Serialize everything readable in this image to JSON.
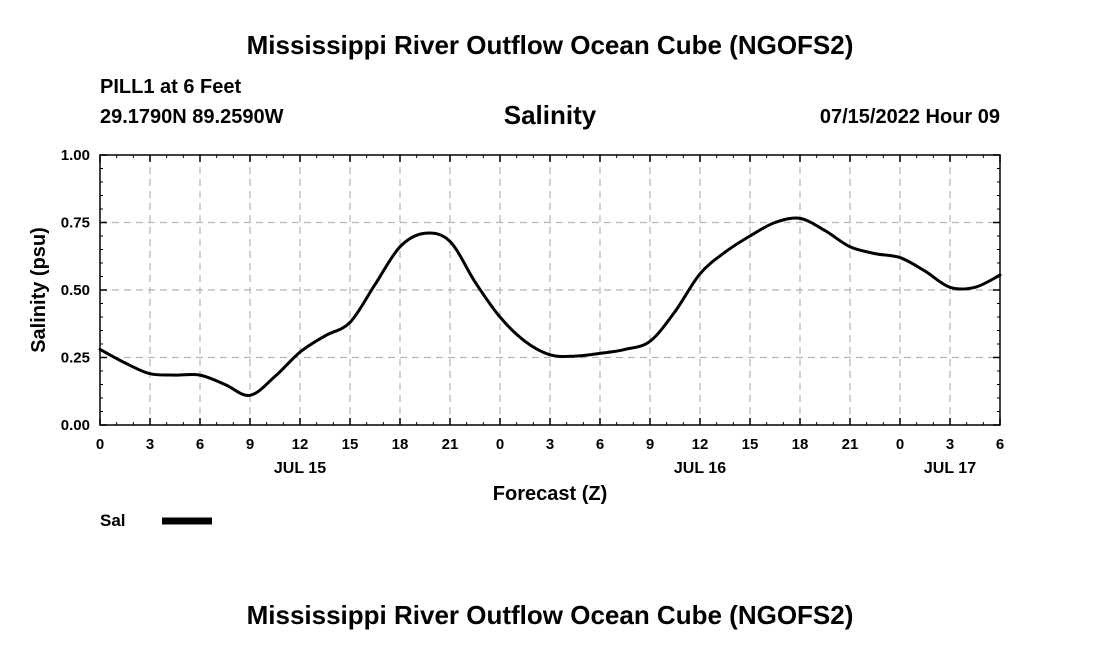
{
  "page": {
    "title": "Mississippi River Outflow Ocean Cube (NGOFS2)",
    "footer_title": "Mississippi River Outflow Ocean Cube (NGOFS2)"
  },
  "station": {
    "name_line": "PILL1 at 6 Feet",
    "coords": "29.1790N  89.2590W"
  },
  "plot": {
    "variable_title": "Salinity",
    "timestamp": "07/15/2022 Hour 09"
  },
  "legend": {
    "label": "Sal",
    "color": "#000000"
  },
  "chart_data": {
    "type": "line",
    "title": "Salinity",
    "xlabel": "Forecast (Z)",
    "ylabel": "Salinity (psu)",
    "ylim": [
      0,
      1
    ],
    "xlim": [
      0,
      54
    ],
    "grid": true,
    "legend_position": "bottom-left",
    "yticks": [
      {
        "value": 0,
        "label": "0.00"
      },
      {
        "value": 0.25,
        "label": "0.25"
      },
      {
        "value": 0.5,
        "label": "0.50"
      },
      {
        "value": 0.75,
        "label": "0.75"
      },
      {
        "value": 1,
        "label": "1.00"
      }
    ],
    "xticks": [
      {
        "value": 0,
        "label": "0"
      },
      {
        "value": 3,
        "label": "3"
      },
      {
        "value": 6,
        "label": "6"
      },
      {
        "value": 9,
        "label": "9"
      },
      {
        "value": 12,
        "label": "12"
      },
      {
        "value": 15,
        "label": "15"
      },
      {
        "value": 18,
        "label": "18"
      },
      {
        "value": 21,
        "label": "21"
      },
      {
        "value": 24,
        "label": "0"
      },
      {
        "value": 27,
        "label": "3"
      },
      {
        "value": 30,
        "label": "6"
      },
      {
        "value": 33,
        "label": "9"
      },
      {
        "value": 36,
        "label": "12"
      },
      {
        "value": 39,
        "label": "15"
      },
      {
        "value": 42,
        "label": "18"
      },
      {
        "value": 45,
        "label": "21"
      },
      {
        "value": 48,
        "label": "0"
      },
      {
        "value": 51,
        "label": "3"
      },
      {
        "value": 54,
        "label": "6"
      }
    ],
    "date_labels": [
      {
        "value": 12,
        "label": "JUL 15"
      },
      {
        "value": 36,
        "label": "JUL 16"
      },
      {
        "value": 51,
        "label": "JUL 17"
      }
    ],
    "series": [
      {
        "name": "Sal",
        "x": [
          0,
          1.5,
          3,
          4.5,
          6,
          7.5,
          9,
          10.5,
          12,
          13.5,
          15,
          16.5,
          18,
          19.5,
          21,
          22.5,
          24,
          25.5,
          27,
          28.5,
          30,
          31.5,
          33,
          34.5,
          36,
          37.5,
          39,
          40.5,
          42,
          43.5,
          45,
          46.5,
          48,
          49.5,
          51,
          52.5,
          54
        ],
        "values": [
          0.28,
          0.23,
          0.19,
          0.185,
          0.185,
          0.15,
          0.11,
          0.18,
          0.27,
          0.33,
          0.38,
          0.52,
          0.66,
          0.71,
          0.68,
          0.53,
          0.4,
          0.31,
          0.26,
          0.255,
          0.265,
          0.28,
          0.31,
          0.42,
          0.56,
          0.64,
          0.7,
          0.75,
          0.765,
          0.72,
          0.66,
          0.635,
          0.62,
          0.57,
          0.51,
          0.51,
          0.555
        ]
      }
    ]
  }
}
